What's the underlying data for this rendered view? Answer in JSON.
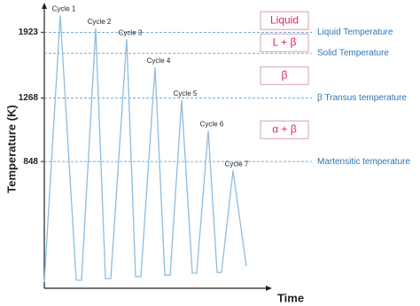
{
  "chart_data": {
    "type": "line",
    "x_label": "Time",
    "y_label": "Temperature (K)",
    "log_scale": true,
    "x": [
      0,
      18,
      36,
      42,
      58,
      69,
      75,
      93,
      103,
      109,
      125,
      136,
      142,
      155,
      167,
      172,
      185,
      195,
      200,
      213,
      228
    ],
    "series": [
      {
        "color": "#8dbde0",
        "values": [
          395,
          2140,
          400,
          400,
          1970,
          404,
          404,
          1840,
          409,
          409,
          1540,
          413,
          413,
          1250,
          418,
          418,
          1030,
          420,
          420,
          800,
          437
        ]
      }
    ],
    "cycle_labels": [
      "Cycle 1",
      "Cycle 2",
      "Cycle 3",
      "Cycle 4",
      "Cycle 5",
      "Cycle 6",
      "Cycle 7"
    ],
    "xlim": [
      0,
      250
    ],
    "ylim": [
      380,
      2230
    ],
    "yticks": [
      848,
      1268,
      1923
    ],
    "reference_lines": [
      {
        "value": 1923,
        "label": "Liquid Temperature"
      },
      {
        "value": 1683,
        "label": "Solid Temperature"
      },
      {
        "value": 1268,
        "label": "β Transus temperature"
      },
      {
        "value": 848,
        "label": "Martensitic temperature"
      }
    ],
    "phases": [
      "Liquid",
      "L + β",
      "β",
      "α + β"
    ]
  }
}
